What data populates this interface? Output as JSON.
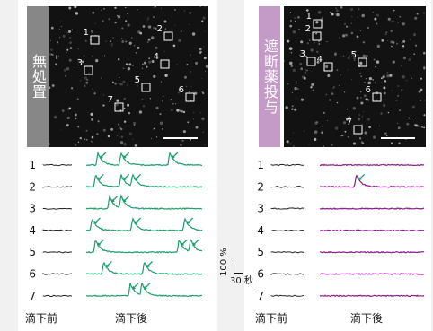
{
  "colors": {
    "background": "#f1f1f1",
    "panel": "#ffffff",
    "image_bg": "#121212",
    "control_label_bg": "#878787",
    "blocker_label_bg": "#c49ac6",
    "control_trace": "#1e9e6a",
    "blocker_trace": "#8a1f8c",
    "baseline_trace": "#222222",
    "arrow_control": "#1e9e6a",
    "arrow_blocker": "#1e9e6a"
  },
  "control": {
    "condition_label": "無処置",
    "roi_labels": [
      "1",
      "2",
      "3",
      "4",
      "5",
      "6",
      "7"
    ],
    "trace_labels": [
      "1",
      "2",
      "3",
      "4",
      "5",
      "6",
      "7"
    ],
    "xlabel_before": "滴下前",
    "xlabel_after": "滴下後"
  },
  "blocker": {
    "condition_label": "遮断薬投与",
    "roi_labels": [
      "1",
      "2",
      "3",
      "4",
      "5",
      "6",
      "7"
    ],
    "trace_labels": [
      "1",
      "2",
      "3",
      "4",
      "5",
      "6",
      "7"
    ],
    "xlabel_before": "滴下前",
    "xlabel_after": "滴下後"
  },
  "scale": {
    "amplitude": "100 %",
    "time": "30 秒"
  },
  "traces": {
    "control_events": [
      {
        "cell": "1",
        "peaks": [
          0.1,
          0.3,
          0.72
        ]
      },
      {
        "cell": "2",
        "peaks": [
          0.08,
          0.3,
          0.4
        ]
      },
      {
        "cell": "3",
        "peaks": [
          0.2,
          0.3
        ]
      },
      {
        "cell": "4",
        "peaks": [
          0.05,
          0.4,
          0.85
        ]
      },
      {
        "cell": "5",
        "peaks": [
          0.08,
          0.8,
          0.9
        ]
      },
      {
        "cell": "6",
        "peaks": [
          0.15,
          0.5
        ]
      },
      {
        "cell": "7",
        "peaks": [
          0.38,
          0.48
        ]
      }
    ],
    "blocker_events": [
      {
        "cell": "2",
        "peaks": [
          0.35
        ]
      }
    ]
  }
}
